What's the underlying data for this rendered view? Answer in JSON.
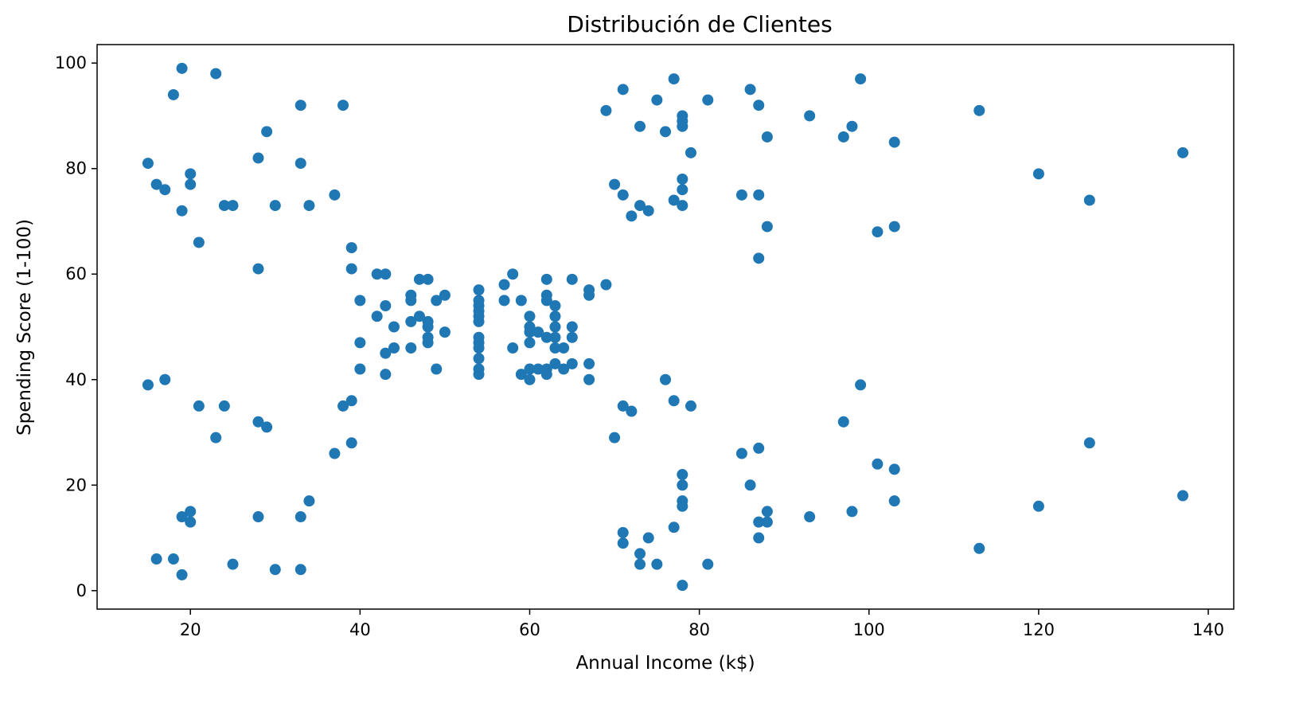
{
  "chart_data": {
    "type": "scatter",
    "title": "Distribución de Clientes",
    "xlabel": "Annual Income (k$)",
    "ylabel": "Spending Score (1-100)",
    "xlim": [
      9,
      143
    ],
    "ylim": [
      -3.5,
      103.5
    ],
    "xticks": [
      20,
      40,
      60,
      80,
      100,
      120,
      140
    ],
    "yticks": [
      0,
      20,
      40,
      60,
      80,
      100
    ],
    "grid": false,
    "color": "#1f77b4",
    "points": [
      [
        15,
        39
      ],
      [
        15,
        81
      ],
      [
        16,
        6
      ],
      [
        16,
        77
      ],
      [
        17,
        40
      ],
      [
        17,
        76
      ],
      [
        18,
        6
      ],
      [
        18,
        94
      ],
      [
        19,
        3
      ],
      [
        19,
        72
      ],
      [
        19,
        14
      ],
      [
        19,
        99
      ],
      [
        20,
        15
      ],
      [
        20,
        77
      ],
      [
        20,
        13
      ],
      [
        20,
        79
      ],
      [
        21,
        35
      ],
      [
        21,
        66
      ],
      [
        23,
        29
      ],
      [
        23,
        98
      ],
      [
        24,
        35
      ],
      [
        24,
        73
      ],
      [
        25,
        5
      ],
      [
        25,
        73
      ],
      [
        28,
        14
      ],
      [
        28,
        82
      ],
      [
        28,
        32
      ],
      [
        28,
        61
      ],
      [
        29,
        31
      ],
      [
        29,
        87
      ],
      [
        30,
        4
      ],
      [
        30,
        73
      ],
      [
        33,
        4
      ],
      [
        33,
        92
      ],
      [
        33,
        14
      ],
      [
        33,
        81
      ],
      [
        34,
        17
      ],
      [
        34,
        73
      ],
      [
        37,
        26
      ],
      [
        37,
        75
      ],
      [
        38,
        35
      ],
      [
        38,
        92
      ],
      [
        39,
        36
      ],
      [
        39,
        61
      ],
      [
        39,
        28
      ],
      [
        39,
        65
      ],
      [
        40,
        55
      ],
      [
        40,
        47
      ],
      [
        40,
        42
      ],
      [
        42,
        52
      ],
      [
        42,
        60
      ],
      [
        43,
        54
      ],
      [
        43,
        60
      ],
      [
        43,
        45
      ],
      [
        43,
        41
      ],
      [
        44,
        50
      ],
      [
        44,
        46
      ],
      [
        46,
        51
      ],
      [
        46,
        46
      ],
      [
        46,
        56
      ],
      [
        46,
        55
      ],
      [
        47,
        52
      ],
      [
        47,
        59
      ],
      [
        48,
        51
      ],
      [
        48,
        59
      ],
      [
        48,
        50
      ],
      [
        48,
        48
      ],
      [
        48,
        47
      ],
      [
        49,
        55
      ],
      [
        49,
        42
      ],
      [
        50,
        49
      ],
      [
        50,
        56
      ],
      [
        54,
        47
      ],
      [
        54,
        54
      ],
      [
        54,
        53
      ],
      [
        54,
        48
      ],
      [
        54,
        52
      ],
      [
        54,
        42
      ],
      [
        54,
        51
      ],
      [
        54,
        55
      ],
      [
        54,
        41
      ],
      [
        54,
        44
      ],
      [
        54,
        57
      ],
      [
        54,
        46
      ],
      [
        57,
        58
      ],
      [
        57,
        55
      ],
      [
        58,
        60
      ],
      [
        58,
        46
      ],
      [
        59,
        55
      ],
      [
        59,
        41
      ],
      [
        60,
        49
      ],
      [
        60,
        40
      ],
      [
        60,
        42
      ],
      [
        60,
        52
      ],
      [
        60,
        47
      ],
      [
        60,
        50
      ],
      [
        61,
        42
      ],
      [
        61,
        49
      ],
      [
        62,
        41
      ],
      [
        62,
        48
      ],
      [
        62,
        59
      ],
      [
        62,
        55
      ],
      [
        62,
        56
      ],
      [
        62,
        42
      ],
      [
        63,
        50
      ],
      [
        63,
        46
      ],
      [
        63,
        43
      ],
      [
        63,
        48
      ],
      [
        63,
        52
      ],
      [
        63,
        54
      ],
      [
        64,
        42
      ],
      [
        64,
        46
      ],
      [
        65,
        48
      ],
      [
        65,
        50
      ],
      [
        65,
        43
      ],
      [
        65,
        59
      ],
      [
        67,
        43
      ],
      [
        67,
        57
      ],
      [
        67,
        56
      ],
      [
        67,
        40
      ],
      [
        69,
        58
      ],
      [
        69,
        91
      ],
      [
        70,
        29
      ],
      [
        70,
        77
      ],
      [
        71,
        35
      ],
      [
        71,
        95
      ],
      [
        71,
        11
      ],
      [
        71,
        75
      ],
      [
        71,
        9
      ],
      [
        72,
        34
      ],
      [
        72,
        71
      ],
      [
        73,
        5
      ],
      [
        73,
        88
      ],
      [
        73,
        7
      ],
      [
        73,
        73
      ],
      [
        74,
        10
      ],
      [
        74,
        72
      ],
      [
        75,
        5
      ],
      [
        75,
        93
      ],
      [
        76,
        40
      ],
      [
        76,
        87
      ],
      [
        77,
        12
      ],
      [
        77,
        97
      ],
      [
        77,
        36
      ],
      [
        77,
        74
      ],
      [
        78,
        22
      ],
      [
        78,
        90
      ],
      [
        78,
        17
      ],
      [
        78,
        88
      ],
      [
        78,
        20
      ],
      [
        78,
        76
      ],
      [
        78,
        16
      ],
      [
        78,
        89
      ],
      [
        78,
        1
      ],
      [
        78,
        78
      ],
      [
        78,
        73
      ],
      [
        79,
        35
      ],
      [
        79,
        83
      ],
      [
        81,
        5
      ],
      [
        81,
        93
      ],
      [
        85,
        26
      ],
      [
        85,
        75
      ],
      [
        86,
        20
      ],
      [
        86,
        95
      ],
      [
        87,
        27
      ],
      [
        87,
        63
      ],
      [
        87,
        13
      ],
      [
        87,
        75
      ],
      [
        87,
        10
      ],
      [
        87,
        92
      ],
      [
        88,
        13
      ],
      [
        88,
        86
      ],
      [
        88,
        15
      ],
      [
        88,
        69
      ],
      [
        93,
        14
      ],
      [
        93,
        90
      ],
      [
        97,
        32
      ],
      [
        97,
        86
      ],
      [
        98,
        15
      ],
      [
        98,
        88
      ],
      [
        99,
        39
      ],
      [
        99,
        97
      ],
      [
        101,
        24
      ],
      [
        101,
        68
      ],
      [
        103,
        17
      ],
      [
        103,
        85
      ],
      [
        103,
        23
      ],
      [
        103,
        69
      ],
      [
        113,
        8
      ],
      [
        113,
        91
      ],
      [
        120,
        16
      ],
      [
        120,
        79
      ],
      [
        126,
        28
      ],
      [
        126,
        74
      ],
      [
        137,
        18
      ],
      [
        137,
        83
      ]
    ]
  }
}
